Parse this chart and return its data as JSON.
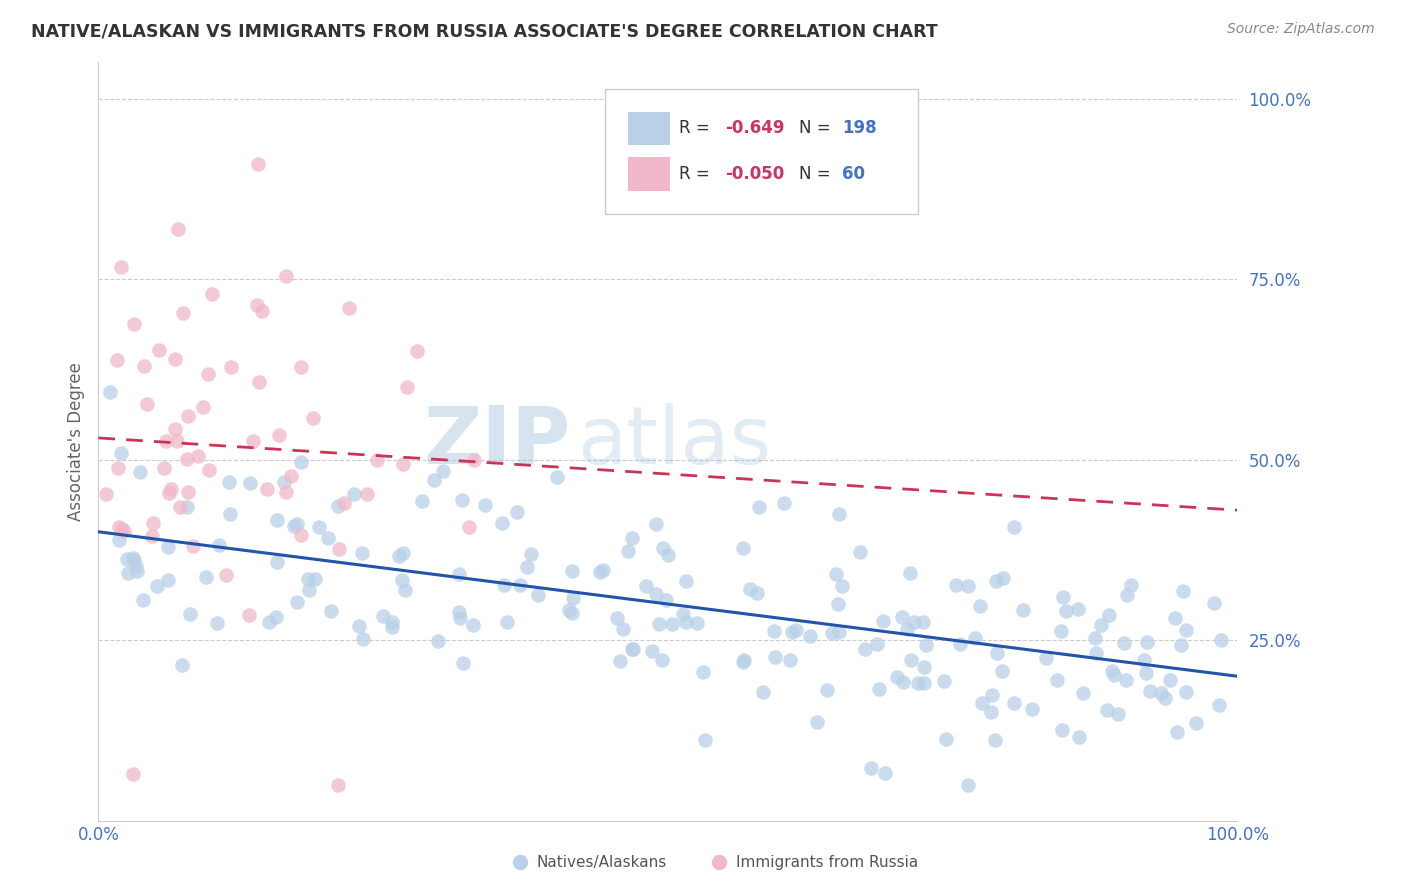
{
  "title": "NATIVE/ALASKAN VS IMMIGRANTS FROM RUSSIA ASSOCIATE'S DEGREE CORRELATION CHART",
  "source": "Source: ZipAtlas.com",
  "ylabel": "Associate's Degree",
  "yticks_labels": [
    "100.0%",
    "75.0%",
    "50.0%",
    "25.0%"
  ],
  "ytick_vals": [
    1.0,
    0.75,
    0.5,
    0.25
  ],
  "xlim": [
    0.0,
    1.0
  ],
  "ylim": [
    0.0,
    1.05
  ],
  "blue_scatter_color": "#b8d0e8",
  "pink_scatter_color": "#f0b8c8",
  "blue_line_color": "#2255aa",
  "pink_line_color": "#cc3355",
  "grid_color": "#cccccc",
  "blue_R": -0.649,
  "blue_N": 198,
  "pink_R": -0.05,
  "pink_N": 60,
  "background_color": "#ffffff",
  "title_color": "#333333",
  "tick_label_color": "#4472c4",
  "legend_R_color": "#cc3366",
  "legend_N_color": "#4472c4",
  "watermark_zip_color": "#ccddee",
  "watermark_atlas_color": "#ccddee",
  "blue_line_intercept": 0.4,
  "blue_line_slope": -0.2,
  "pink_line_intercept": 0.53,
  "pink_line_slope": -0.1
}
